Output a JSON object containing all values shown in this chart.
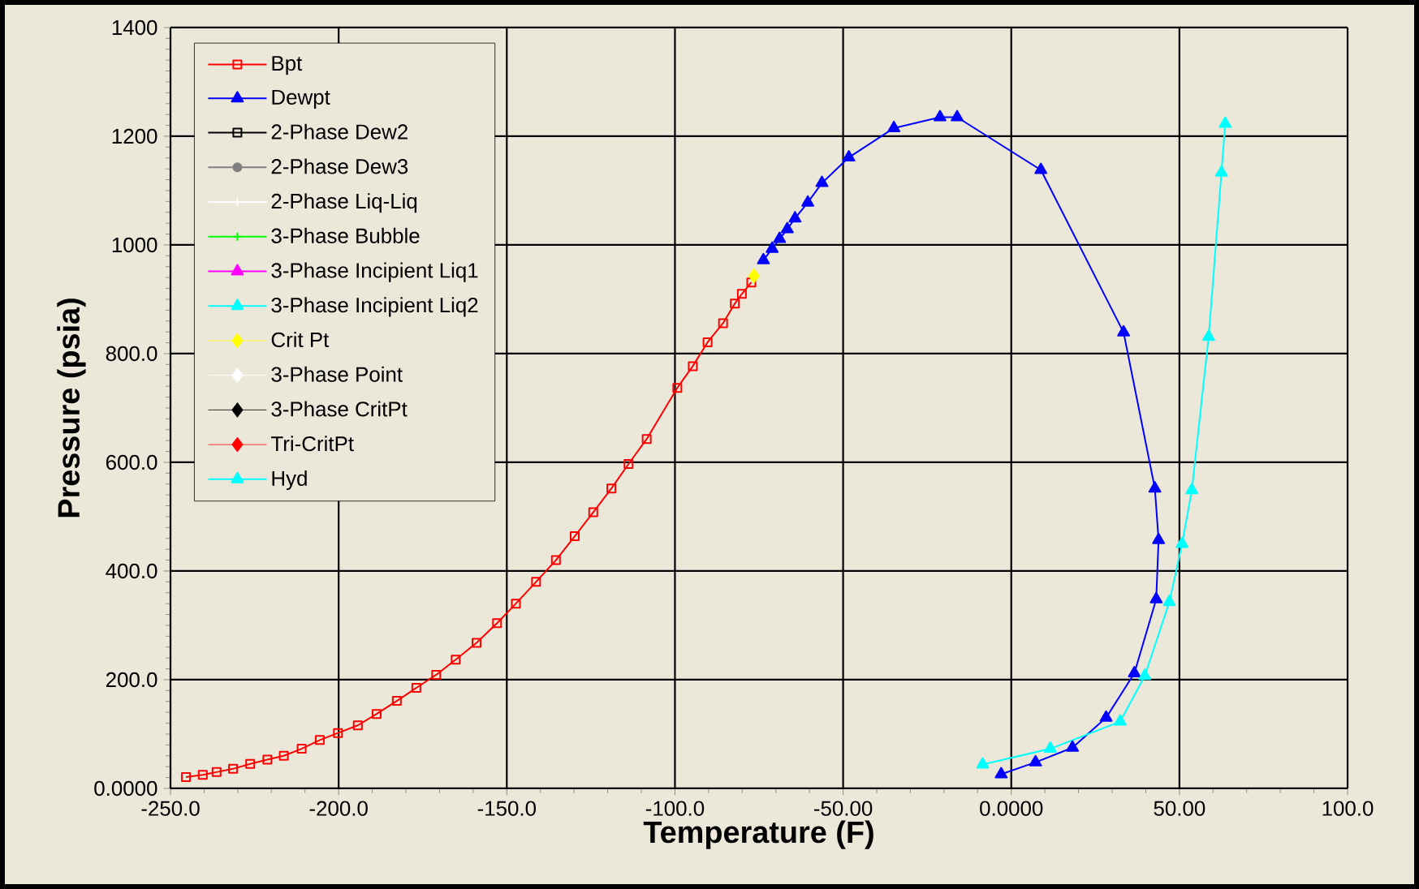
{
  "chart_data": {
    "type": "line",
    "xlabel": "Temperature (F)",
    "ylabel": "Pressure (psia)",
    "xlim": [
      -250,
      100
    ],
    "ylim": [
      0,
      1400
    ],
    "xticks": [
      {
        "value": -250,
        "label": "-250.0"
      },
      {
        "value": -200,
        "label": "-200.0"
      },
      {
        "value": -150,
        "label": "-150.0"
      },
      {
        "value": -100,
        "label": "-100.0"
      },
      {
        "value": -50,
        "label": "-50.00"
      },
      {
        "value": 0,
        "label": "0.0000"
      },
      {
        "value": 50,
        "label": "50.00"
      },
      {
        "value": 100,
        "label": "100.0"
      }
    ],
    "yticks": [
      {
        "value": 0,
        "label": "0.0000"
      },
      {
        "value": 200,
        "label": "200.0"
      },
      {
        "value": 400,
        "label": "400.0"
      },
      {
        "value": 600,
        "label": "600.0"
      },
      {
        "value": 800,
        "label": "800.0"
      },
      1000,
      1200,
      1400
    ],
    "grid": true,
    "legend": "top left",
    "series": [
      {
        "name": "Bpt",
        "color": "#ff0000",
        "marker": "square",
        "x": [
          -245.4,
          -240.4,
          -236.3,
          -231.4,
          -226.3,
          -221.2,
          -216.3,
          -211.0,
          -205.6,
          -200.2,
          -194.3,
          -188.7,
          -182.7,
          -176.9,
          -171.0,
          -165.2,
          -159.0,
          -152.9,
          -147.3,
          -141.3,
          -135.4,
          -129.8,
          -124.3,
          -118.9,
          -113.8,
          -108.4,
          -99.3,
          -94.7,
          -90.3,
          -85.7,
          -82.2,
          -80.1,
          -77.3
        ],
        "values": [
          21,
          25,
          30,
          36,
          45,
          53,
          60,
          73,
          89,
          102,
          116,
          137,
          161,
          185,
          209,
          237,
          268,
          304,
          340,
          380,
          420,
          464,
          508,
          552,
          597,
          643,
          737,
          777,
          821,
          856,
          892,
          910,
          931
        ]
      },
      {
        "name": "Dewpt",
        "color": "#0000ff",
        "marker": "triangle",
        "x": [
          -73.7,
          -71.1,
          -68.9,
          -66.6,
          -64.3,
          -60.5,
          -56.3,
          -48.3,
          -34.9,
          -21.2,
          -16.1,
          8.8,
          33.4,
          42.7,
          43.8,
          43.1,
          36.6,
          28.2,
          18.2,
          7.2,
          -3.0
        ],
        "values": [
          972,
          993,
          1011,
          1029,
          1049,
          1078,
          1114,
          1161,
          1215,
          1235,
          1235,
          1138,
          839,
          552,
          457,
          348,
          212,
          130,
          75,
          48,
          26
        ]
      },
      {
        "name": "2-Phase Dew2",
        "color": "#000000",
        "marker": "square"
      },
      {
        "name": "2-Phase Dew3",
        "color": "#808080",
        "marker": "circle"
      },
      {
        "name": "2-Phase Liq-Liq",
        "color": "#ffffff",
        "marker": "cross"
      },
      {
        "name": "3-Phase Bubble",
        "color": "#00ff00",
        "marker": "cross"
      },
      {
        "name": "3-Phase Incipient Liq1",
        "color": "#ff00ff",
        "marker": "triangle"
      },
      {
        "name": "3-Phase Incipient Liq2",
        "color": "#00ffff",
        "marker": "triangle"
      },
      {
        "name": "Crit Pt",
        "type": "scatter",
        "color": "#ffff00",
        "marker": "diamond",
        "x": [
          -76.5
        ],
        "values": [
          943
        ]
      },
      {
        "name": "3-Phase Point",
        "type": "scatter",
        "color": "#ffffff",
        "marker": "diamond"
      },
      {
        "name": "3-Phase CritPt",
        "type": "scatter",
        "color": "#000000",
        "marker": "diamond"
      },
      {
        "name": "Tri-CritPt",
        "type": "scatter",
        "color": "#ff0000",
        "marker": "diamond"
      },
      {
        "name": "Hyd",
        "color": "#00ffff",
        "marker": "triangle",
        "x": [
          -8.5,
          11.6,
          32.4,
          39.7,
          47.0,
          50.8,
          53.7,
          58.7,
          62.5,
          63.6
        ],
        "values": [
          44,
          73,
          123,
          207,
          343,
          450,
          549,
          831,
          1133,
          1223
        ]
      }
    ]
  }
}
